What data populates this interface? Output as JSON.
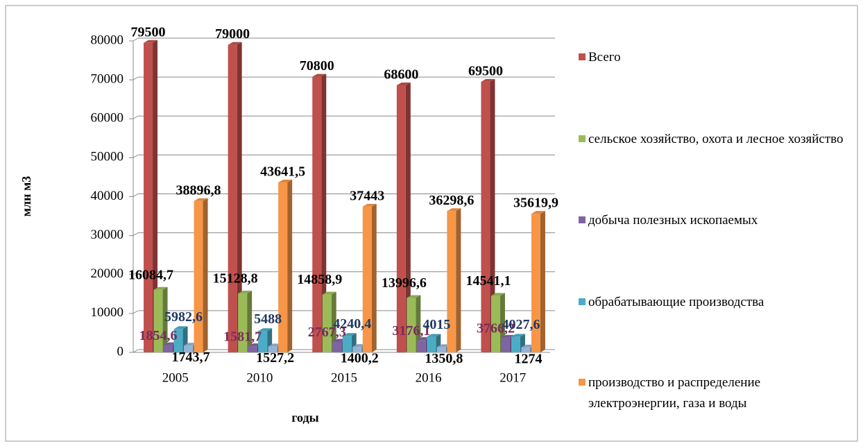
{
  "chart_data": {
    "type": "bar3d",
    "x_label": "годы",
    "y_label": "млн м3",
    "categories": [
      "2005",
      "2010",
      "2015",
      "2016",
      "2017"
    ],
    "ylim": [
      0,
      80000
    ],
    "yticks": [
      0,
      10000,
      20000,
      30000,
      40000,
      50000,
      60000,
      70000,
      80000
    ],
    "grid": true,
    "legend": "right",
    "series": [
      {
        "name": "Всего",
        "color": "#c0504d",
        "label_color": "#000000",
        "values": [
          79500,
          79000,
          70800,
          68600,
          69500
        ]
      },
      {
        "name": " сельское хозяйство, охота и лесное хозяйство",
        "color": "#9bbb59",
        "label_color": "#000000",
        "values": [
          16084.7,
          15128.8,
          14858.9,
          13996.6,
          14541.1
        ],
        "value_labels": [
          "16084,7",
          "15128,8",
          "14858,9",
          "13996,6",
          "14541,1"
        ]
      },
      {
        "name": "добыча полезных ископаемых",
        "color": "#8064a2",
        "label_color": "#7b2a5a",
        "values": [
          1854.6,
          1581.7,
          2767.3,
          3176.1,
          3766.2
        ],
        "value_labels": [
          "1854,6",
          "1581,7",
          "2767,3",
          "3176,1",
          "3766,2"
        ]
      },
      {
        "name": "обрабатывающие производства",
        "color": "#4bacc6",
        "label_color": "#1f3864",
        "values": [
          5982.6,
          5488,
          4240.4,
          4015,
          4027.6
        ],
        "value_labels": [
          "5982,6",
          "5488",
          "4240,4",
          "4015",
          "4027,6"
        ]
      },
      {
        "color": "#95b3d7",
        "label_color": "#000000",
        "values": [
          1743.7,
          1527.2,
          1400.2,
          1350.8,
          1274
        ],
        "value_labels": [
          "1743,7",
          "1527,2",
          "1400,2",
          "1350,8",
          "1274"
        ]
      },
      {
        "name": "производство и распределение электроэнергии, газа и воды",
        "color": "#f79646",
        "label_color": "#000000",
        "values": [
          38896.8,
          43641.5,
          37443,
          36298.6,
          35619.9
        ],
        "value_labels": [
          "38896,8",
          "43641,5",
          "37443",
          "36298,6",
          "35619,9"
        ]
      }
    ]
  }
}
